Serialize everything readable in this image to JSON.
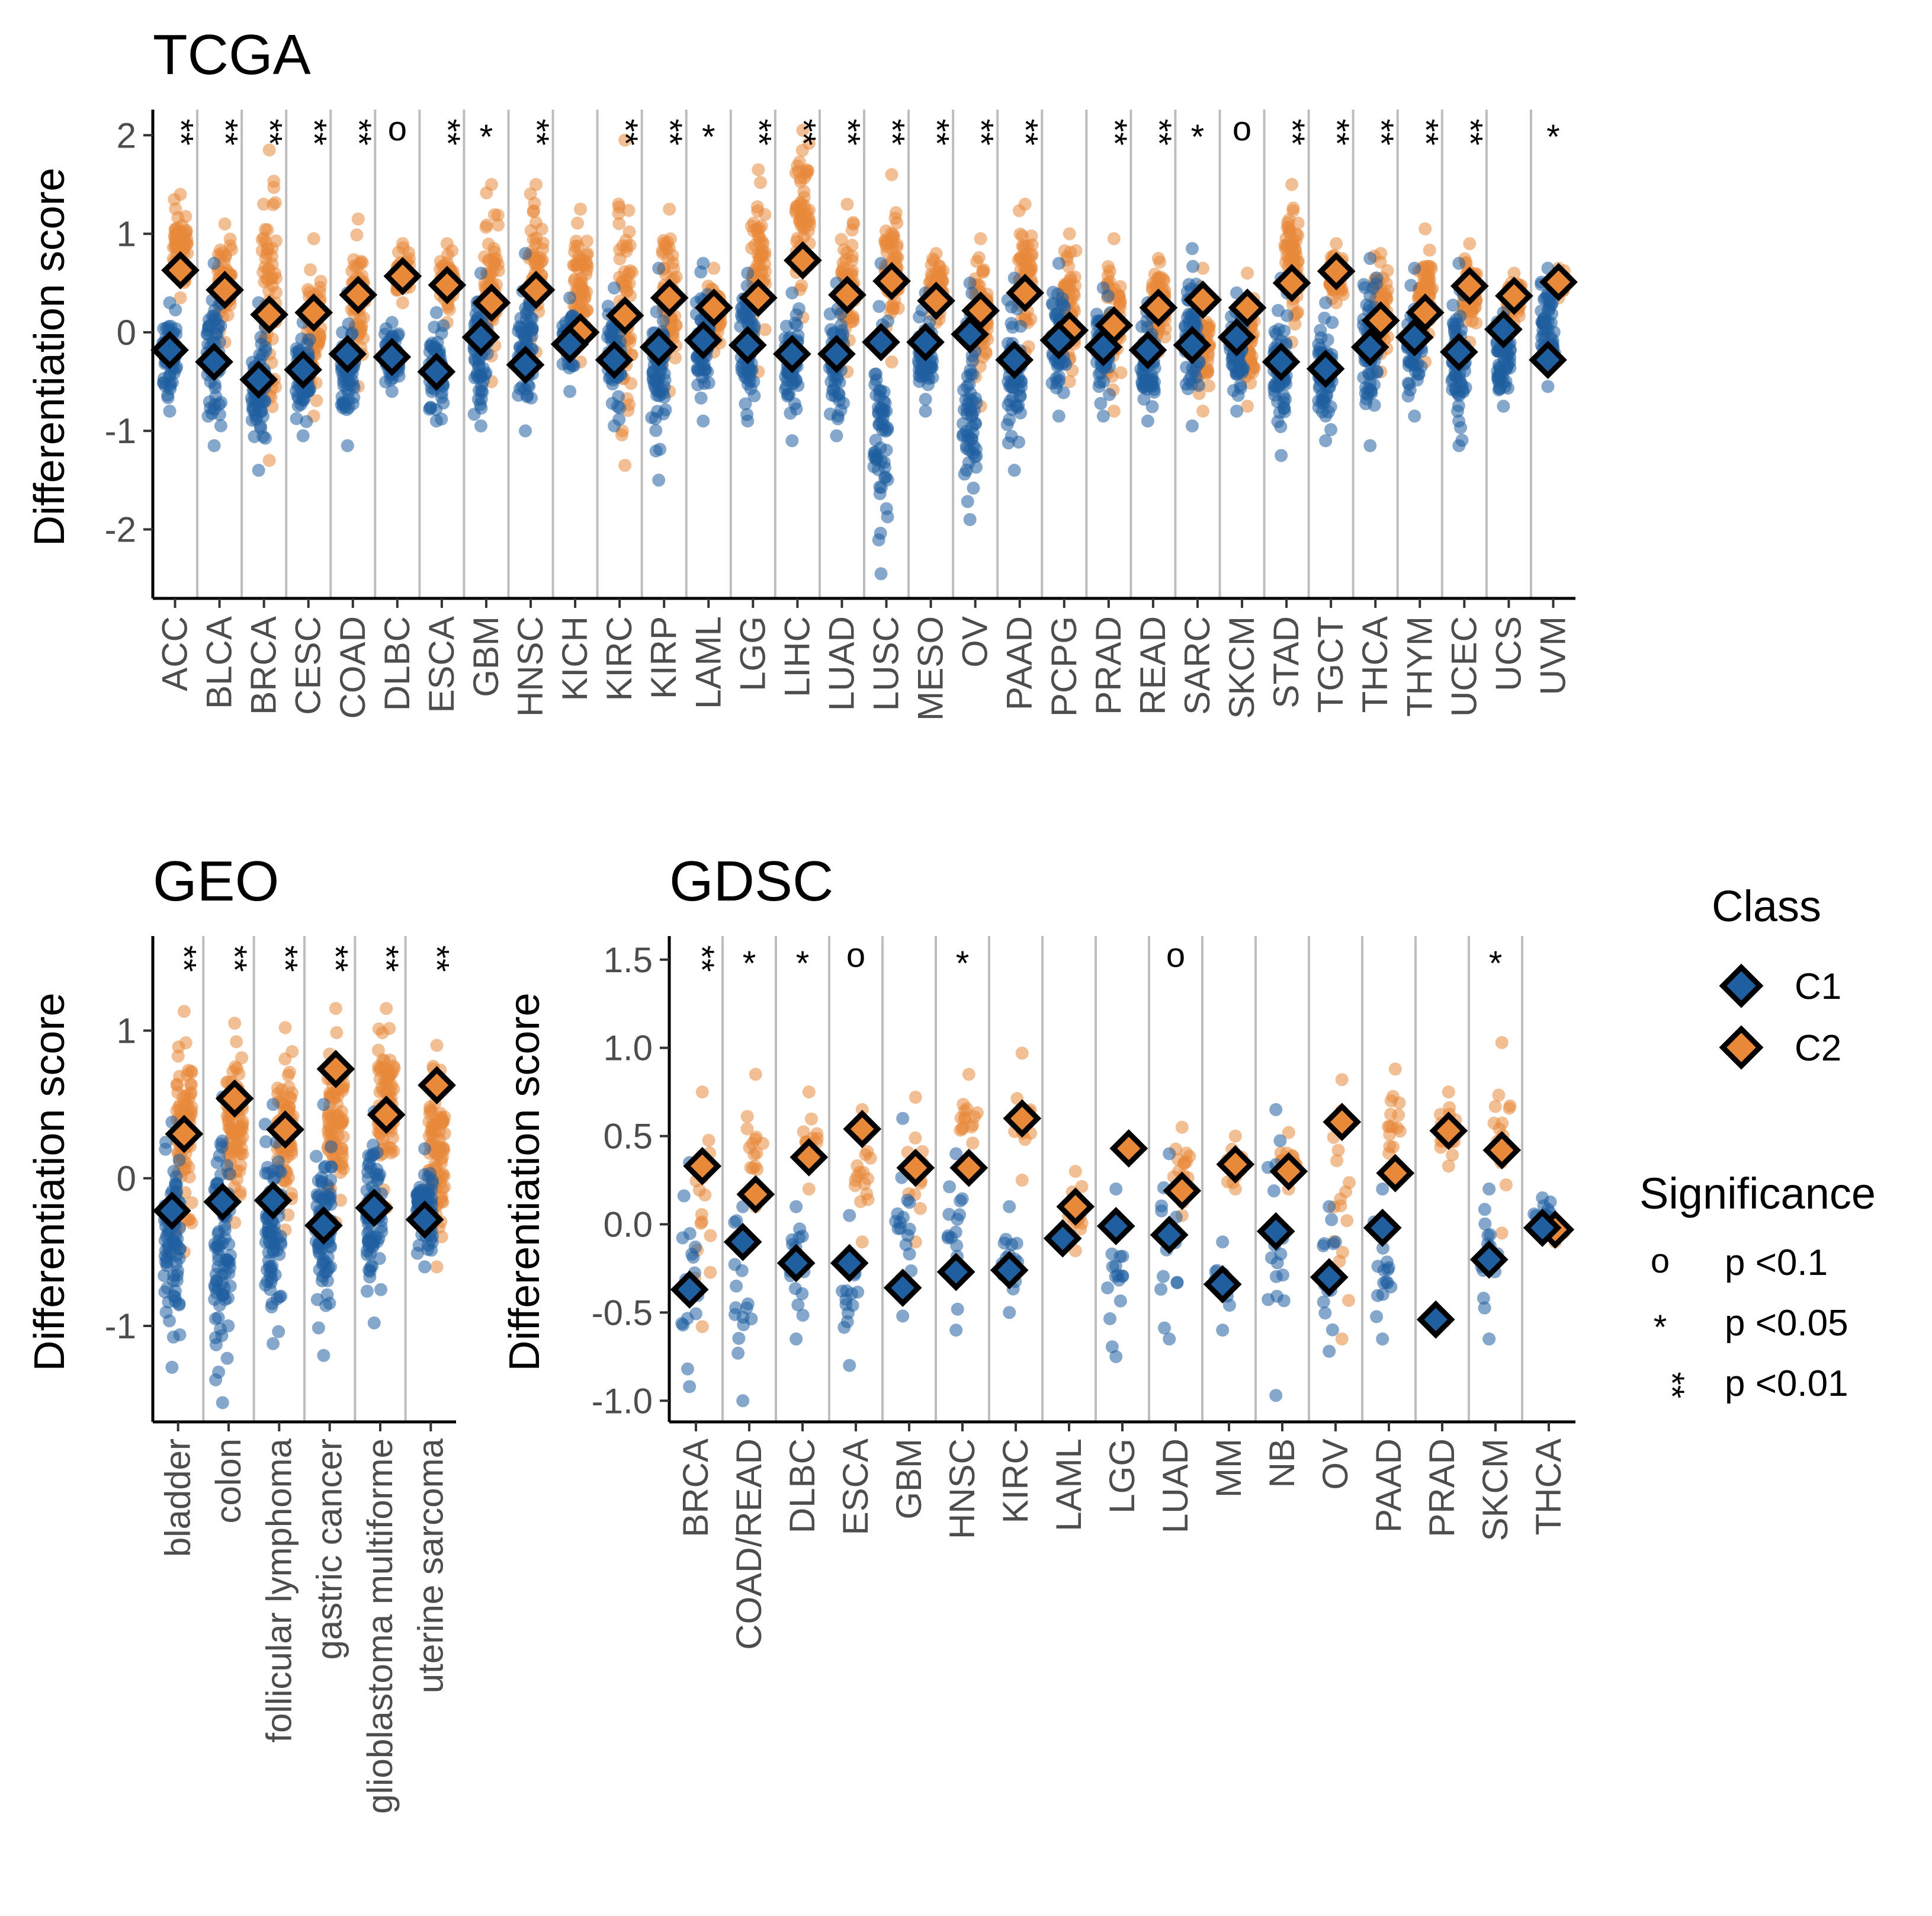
{
  "figure": {
    "legend": {
      "class_title": "Class",
      "classes": [
        {
          "label": "C1",
          "color": "#1F5FA0"
        },
        {
          "label": "C2",
          "color": "#E8893A"
        }
      ],
      "significance_title": "Significance",
      "significance": [
        {
          "symbol": "o",
          "label": "p <0.1"
        },
        {
          "symbol": "*",
          "label": "p <0.05"
        },
        {
          "symbol": "**",
          "label": "p <0.01"
        }
      ]
    }
  },
  "chart_data": [
    {
      "type": "scatter",
      "title": "TCGA",
      "ylabel": "Differentiation score",
      "xlabel": "",
      "ylim": [
        -2.7,
        2.2
      ],
      "yticks": [
        -2,
        -1,
        0,
        1,
        2
      ],
      "categories": [
        "ACC",
        "BLCA",
        "BRCA",
        "CESC",
        "COAD",
        "DLBC",
        "ESCA",
        "GBM",
        "HNSC",
        "KICH",
        "KIRC",
        "KIRP",
        "LAML",
        "LGG",
        "LIHC",
        "LUAD",
        "LUSC",
        "MESO",
        "OV",
        "PAAD",
        "PCPG",
        "PRAD",
        "READ",
        "SARC",
        "SKCM",
        "STAD",
        "TGCT",
        "THCA",
        "THYM",
        "UCEC",
        "UCS",
        "UVM"
      ],
      "series": [
        {
          "name": "C1",
          "values": [
            -0.18,
            -0.3,
            -0.48,
            -0.38,
            -0.22,
            -0.25,
            -0.4,
            -0.05,
            -0.33,
            -0.12,
            -0.28,
            -0.15,
            -0.08,
            -0.13,
            -0.22,
            -0.22,
            -0.1,
            -0.1,
            -0.02,
            -0.28,
            -0.08,
            -0.15,
            -0.18,
            -0.13,
            -0.05,
            -0.3,
            -0.37,
            -0.15,
            -0.05,
            -0.2,
            0.03,
            -0.28
          ],
          "spread": [
            [
              -0.8,
              0.3
            ],
            [
              -1.15,
              0.7
            ],
            [
              -1.4,
              0.3
            ],
            [
              -1.05,
              0.1
            ],
            [
              -1.15,
              0.4
            ],
            [
              -0.6,
              0.1
            ],
            [
              -0.9,
              0.2
            ],
            [
              -0.95,
              0.6
            ],
            [
              -1.0,
              0.8
            ],
            [
              -0.6,
              0.35
            ],
            [
              -0.95,
              0.45
            ],
            [
              -1.5,
              0.65
            ],
            [
              -0.9,
              0.7
            ],
            [
              -0.9,
              0.6
            ],
            [
              -1.1,
              0.4
            ],
            [
              -1.05,
              0.5
            ],
            [
              -2.45,
              0.7
            ],
            [
              -0.8,
              0.4
            ],
            [
              -1.9,
              0.5
            ],
            [
              -1.4,
              0.55
            ],
            [
              -0.85,
              0.7
            ],
            [
              -0.85,
              0.45
            ],
            [
              -0.9,
              0.3
            ],
            [
              -0.95,
              0.85
            ],
            [
              -0.8,
              0.4
            ],
            [
              -1.25,
              0.55
            ],
            [
              -1.1,
              0.3
            ],
            [
              -1.15,
              0.75
            ],
            [
              -0.85,
              0.65
            ],
            [
              -1.15,
              0.7
            ],
            [
              -0.75,
              0.2
            ],
            [
              -0.55,
              0.65
            ]
          ]
        },
        {
          "name": "C2",
          "values": [
            0.63,
            0.43,
            0.18,
            0.2,
            0.38,
            0.57,
            0.48,
            0.3,
            0.43,
            0.0,
            0.17,
            0.35,
            0.25,
            0.35,
            0.73,
            0.38,
            0.52,
            0.32,
            0.22,
            0.4,
            0.02,
            0.07,
            0.25,
            0.33,
            0.25,
            0.5,
            0.62,
            0.12,
            0.2,
            0.47,
            0.37,
            0.51
          ],
          "spread": [
            [
              0.35,
              1.4
            ],
            [
              -0.1,
              1.1
            ],
            [
              -1.3,
              1.85
            ],
            [
              -0.85,
              0.95
            ],
            [
              -0.55,
              1.15
            ],
            [
              0.3,
              0.9
            ],
            [
              0.1,
              0.9
            ],
            [
              -0.5,
              1.5
            ],
            [
              -0.2,
              1.5
            ],
            [
              -0.3,
              1.25
            ],
            [
              -1.35,
              1.95
            ],
            [
              -0.6,
              1.25
            ],
            [
              -0.2,
              0.65
            ],
            [
              -0.4,
              1.65
            ],
            [
              0.15,
              2.05
            ],
            [
              -0.4,
              1.3
            ],
            [
              -0.3,
              1.6
            ],
            [
              0.1,
              0.8
            ],
            [
              -0.75,
              0.95
            ],
            [
              -0.2,
              1.3
            ],
            [
              -0.5,
              1.0
            ],
            [
              -0.8,
              0.95
            ],
            [
              -0.2,
              0.75
            ],
            [
              -0.8,
              0.65
            ],
            [
              -0.75,
              0.6
            ],
            [
              -0.1,
              1.5
            ],
            [
              0.3,
              0.9
            ],
            [
              -0.4,
              0.8
            ],
            [
              -0.3,
              1.05
            ],
            [
              -0.1,
              0.9
            ],
            [
              0.1,
              0.6
            ],
            [
              0.35,
              0.65
            ]
          ]
        }
      ],
      "significance": [
        "**",
        "**",
        "**",
        "**",
        "**",
        "o",
        "**",
        "*",
        "**",
        "",
        "**",
        "**",
        "*",
        "**",
        "**",
        "**",
        "**",
        "**",
        "**",
        "**",
        "",
        "**",
        "**",
        "*",
        "o",
        "**",
        "**",
        "**",
        "**",
        "**",
        "",
        "*"
      ]
    },
    {
      "type": "scatter",
      "title": "GEO",
      "ylabel": "Differentiation score",
      "xlabel": "",
      "ylim": [
        -1.65,
        1.6
      ],
      "yticks": [
        -1,
        0,
        1
      ],
      "categories": [
        "bladder",
        "colon",
        "follicular lymphoma",
        "gastric cancer",
        "glioblastoma multiforme",
        "uterine sarcoma"
      ],
      "series": [
        {
          "name": "C1",
          "values": [
            -0.22,
            -0.16,
            -0.15,
            -0.32,
            -0.2,
            -0.28
          ],
          "spread": [
            [
              -1.28,
              0.38
            ],
            [
              -1.52,
              0.55
            ],
            [
              -1.12,
              0.5
            ],
            [
              -1.2,
              0.5
            ],
            [
              -0.98,
              0.45
            ],
            [
              -0.6,
              0.2
            ]
          ]
        },
        {
          "name": "C2",
          "values": [
            0.3,
            0.54,
            0.33,
            0.74,
            0.43,
            0.63
          ],
          "spread": [
            [
              -0.5,
              1.13
            ],
            [
              -0.3,
              1.05
            ],
            [
              -0.35,
              1.02
            ],
            [
              -0.3,
              1.15
            ],
            [
              -0.2,
              1.15
            ],
            [
              -0.6,
              0.9
            ]
          ]
        }
      ],
      "significance": [
        "**",
        "**",
        "**",
        "**",
        "**",
        "**"
      ]
    },
    {
      "type": "scatter",
      "title": "GDSC",
      "ylabel": "Differentiation score",
      "xlabel": "",
      "ylim": [
        -1.12,
        1.6
      ],
      "yticks": [
        -1.0,
        -0.5,
        0.0,
        0.5,
        1.0,
        1.5
      ],
      "categories": [
        "BRCA",
        "COAD/READ",
        "DLBC",
        "ESCA",
        "GBM",
        "HNSC",
        "KIRC",
        "LAML",
        "LGG",
        "LUAD",
        "MM",
        "NB",
        "OV",
        "PAAD",
        "PRAD",
        "SKCM",
        "THCA"
      ],
      "series": [
        {
          "name": "C1",
          "values": [
            -0.37,
            -0.1,
            -0.22,
            -0.22,
            -0.36,
            -0.27,
            -0.26,
            -0.08,
            -0.01,
            -0.06,
            -0.34,
            -0.04,
            -0.3,
            -0.02,
            -0.54,
            -0.2,
            -0.02
          ],
          "spread": [
            [
              -0.92,
              0.35
            ],
            [
              -1.0,
              0.1
            ],
            [
              -0.65,
              0.1
            ],
            [
              -0.8,
              0.05
            ],
            [
              -0.52,
              0.6
            ],
            [
              -0.6,
              0.4
            ],
            [
              -0.5,
              0.1
            ],
            [
              -0.1,
              -0.05
            ],
            [
              -0.75,
              0.2
            ],
            [
              -0.65,
              0.4
            ],
            [
              -0.6,
              -0.1
            ],
            [
              -0.97,
              0.65
            ],
            [
              -0.72,
              0.1
            ],
            [
              -0.65,
              0.2
            ],
            [
              -0.55,
              -0.52
            ],
            [
              -0.65,
              0.2
            ],
            [
              -0.05,
              0.15
            ]
          ]
        },
        {
          "name": "C2",
          "values": [
            0.33,
            0.17,
            0.38,
            0.54,
            0.32,
            0.32,
            0.6,
            0.1,
            0.43,
            0.19,
            0.34,
            0.3,
            0.58,
            0.29,
            0.53,
            0.42,
            -0.03
          ],
          "spread": [
            [
              -0.58,
              0.75
            ],
            [
              0.1,
              0.85
            ],
            [
              0.2,
              0.75
            ],
            [
              -0.1,
              0.65
            ],
            [
              -0.1,
              0.72
            ],
            [
              0.3,
              0.85
            ],
            [
              0.25,
              0.97
            ],
            [
              -0.15,
              0.3
            ],
            [
              0.4,
              0.45
            ],
            [
              0.05,
              0.55
            ],
            [
              0.2,
              0.5
            ],
            [
              0.2,
              0.52
            ],
            [
              -0.65,
              0.82
            ],
            [
              0.25,
              0.88
            ],
            [
              0.33,
              0.75
            ],
            [
              -0.05,
              1.03
            ],
            [
              -0.1,
              0.0
            ]
          ]
        }
      ],
      "significance": [
        "**",
        "*",
        "*",
        "o",
        "",
        "*",
        "",
        "",
        "",
        "o",
        "",
        "",
        "",
        "",
        "",
        "*",
        ""
      ]
    }
  ]
}
